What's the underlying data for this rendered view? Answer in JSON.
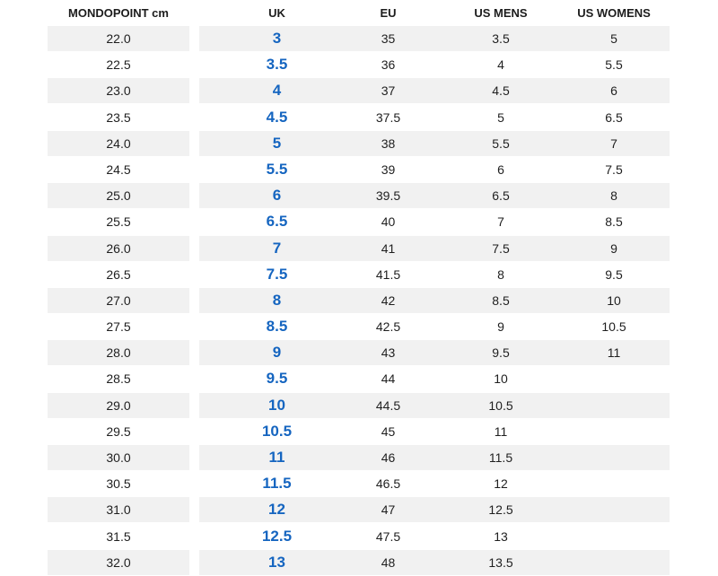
{
  "headers": {
    "mondopoint": "MONDOPOINT cm",
    "uk": "UK",
    "eu": "EU",
    "us_mens": "US MENS",
    "us_womens": "US WOMENS"
  },
  "colors": {
    "uk_accent": "#1565c0",
    "stripe": "#f1f1f1"
  },
  "rows": [
    {
      "mondopoint": "22.0",
      "uk": "3",
      "eu": "35",
      "us_mens": "3.5",
      "us_womens": "5"
    },
    {
      "mondopoint": "22.5",
      "uk": "3.5",
      "eu": "36",
      "us_mens": "4",
      "us_womens": "5.5"
    },
    {
      "mondopoint": "23.0",
      "uk": "4",
      "eu": "37",
      "us_mens": "4.5",
      "us_womens": "6"
    },
    {
      "mondopoint": "23.5",
      "uk": "4.5",
      "eu": "37.5",
      "us_mens": "5",
      "us_womens": "6.5"
    },
    {
      "mondopoint": "24.0",
      "uk": "5",
      "eu": "38",
      "us_mens": "5.5",
      "us_womens": "7"
    },
    {
      "mondopoint": "24.5",
      "uk": "5.5",
      "eu": "39",
      "us_mens": "6",
      "us_womens": "7.5"
    },
    {
      "mondopoint": "25.0",
      "uk": "6",
      "eu": "39.5",
      "us_mens": "6.5",
      "us_womens": "8"
    },
    {
      "mondopoint": "25.5",
      "uk": "6.5",
      "eu": "40",
      "us_mens": "7",
      "us_womens": "8.5"
    },
    {
      "mondopoint": "26.0",
      "uk": "7",
      "eu": "41",
      "us_mens": "7.5",
      "us_womens": "9"
    },
    {
      "mondopoint": "26.5",
      "uk": "7.5",
      "eu": "41.5",
      "us_mens": "8",
      "us_womens": "9.5"
    },
    {
      "mondopoint": "27.0",
      "uk": "8",
      "eu": "42",
      "us_mens": "8.5",
      "us_womens": "10"
    },
    {
      "mondopoint": "27.5",
      "uk": "8.5",
      "eu": "42.5",
      "us_mens": "9",
      "us_womens": "10.5"
    },
    {
      "mondopoint": "28.0",
      "uk": "9",
      "eu": "43",
      "us_mens": "9.5",
      "us_womens": "11"
    },
    {
      "mondopoint": "28.5",
      "uk": "9.5",
      "eu": "44",
      "us_mens": "10",
      "us_womens": ""
    },
    {
      "mondopoint": "29.0",
      "uk": "10",
      "eu": "44.5",
      "us_mens": "10.5",
      "us_womens": ""
    },
    {
      "mondopoint": "29.5",
      "uk": "10.5",
      "eu": "45",
      "us_mens": "11",
      "us_womens": ""
    },
    {
      "mondopoint": "30.0",
      "uk": "11",
      "eu": "46",
      "us_mens": "11.5",
      "us_womens": ""
    },
    {
      "mondopoint": "30.5",
      "uk": "11.5",
      "eu": "46.5",
      "us_mens": "12",
      "us_womens": ""
    },
    {
      "mondopoint": "31.0",
      "uk": "12",
      "eu": "47",
      "us_mens": "12.5",
      "us_womens": ""
    },
    {
      "mondopoint": "31.5",
      "uk": "12.5",
      "eu": "47.5",
      "us_mens": "13",
      "us_womens": ""
    },
    {
      "mondopoint": "32.0",
      "uk": "13",
      "eu": "48",
      "us_mens": "13.5",
      "us_womens": ""
    }
  ]
}
